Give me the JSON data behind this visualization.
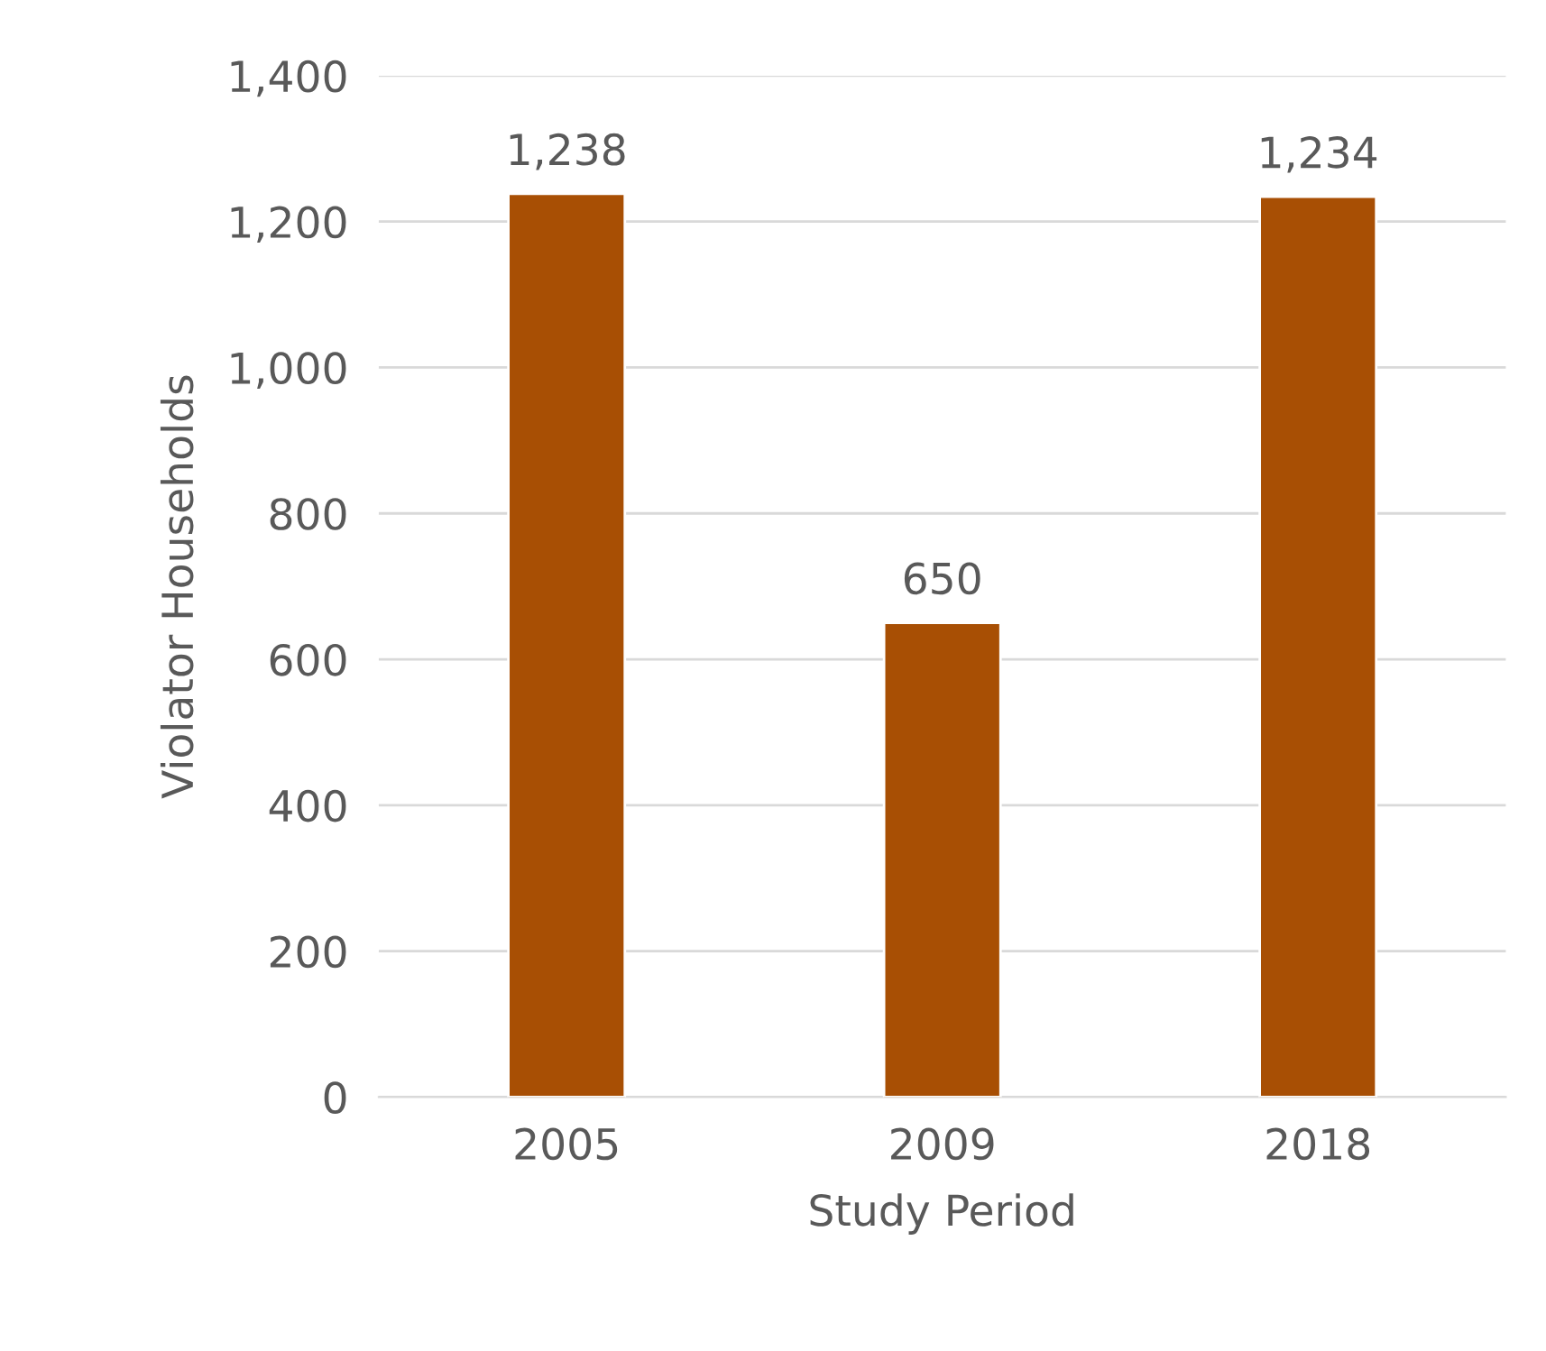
{
  "chart_data": {
    "type": "bar",
    "xlabel": "Study Period",
    "ylabel": "Violator Households",
    "categories": [
      "2005",
      "2009",
      "2018"
    ],
    "values": [
      1238,
      650,
      1234
    ],
    "value_labels": [
      "1,238",
      "650",
      "1,234"
    ],
    "color": "#a84f04",
    "ylim": [
      0,
      1400
    ],
    "yticks": [
      {
        "value": 0,
        "label": "0"
      },
      {
        "value": 200,
        "label": "200"
      },
      {
        "value": 400,
        "label": "400"
      },
      {
        "value": 600,
        "label": "600"
      },
      {
        "value": 800,
        "label": "800"
      },
      {
        "value": 1000,
        "label": "1,000"
      },
      {
        "value": 1200,
        "label": "1,200"
      },
      {
        "value": 1400,
        "label": "1,400"
      }
    ],
    "grid": "y",
    "legend": false
  }
}
